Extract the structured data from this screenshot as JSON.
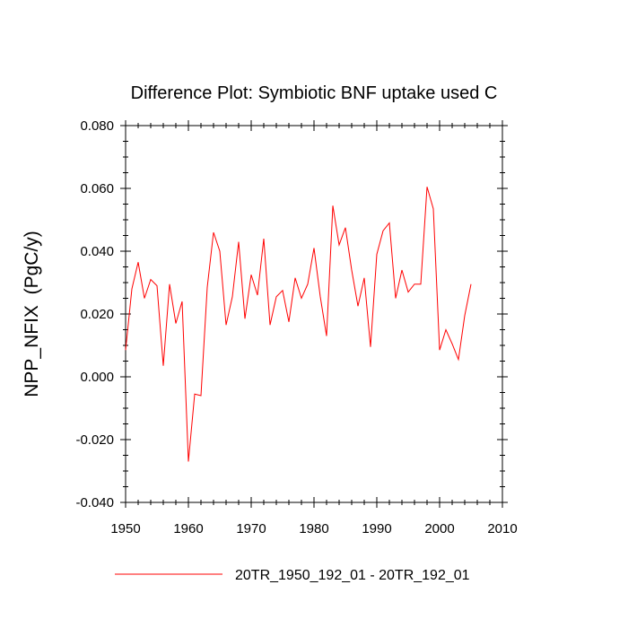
{
  "chart_data": {
    "type": "line",
    "title": "Difference Plot: Symbiotic BNF uptake used C",
    "xlabel": "",
    "ylabel": "NPP_NFIX  (PgC/y)",
    "xlim": [
      1950,
      2010
    ],
    "ylim": [
      -0.04,
      0.08
    ],
    "xticks": [
      1950,
      1960,
      1970,
      1980,
      1990,
      2000,
      2010
    ],
    "xtick_labels": [
      "1950",
      "1960",
      "1970",
      "1980",
      "1990",
      "2000",
      "2010"
    ],
    "yticks": [
      -0.04,
      -0.02,
      0.0,
      0.02,
      0.04,
      0.06,
      0.08
    ],
    "ytick_labels": [
      "-0.040",
      "-0.020",
      "0.000",
      "0.020",
      "0.040",
      "0.060",
      "0.080"
    ],
    "grid": false,
    "legend_position": "bottom-center",
    "series": [
      {
        "name": "20TR_1950_192_01 - 20TR_192_01",
        "color": "#ff0000",
        "x": [
          1950,
          1951,
          1952,
          1953,
          1954,
          1955,
          1956,
          1957,
          1958,
          1959,
          1960,
          1961,
          1962,
          1963,
          1964,
          1965,
          1966,
          1967,
          1968,
          1969,
          1970,
          1971,
          1972,
          1973,
          1974,
          1975,
          1976,
          1977,
          1978,
          1979,
          1980,
          1981,
          1982,
          1983,
          1984,
          1985,
          1986,
          1987,
          1988,
          1989,
          1990,
          1991,
          1992,
          1993,
          1994,
          1995,
          1996,
          1997,
          1998,
          1999,
          2000,
          2001,
          2002,
          2003,
          2004,
          2005
        ],
        "values": [
          0.0085,
          0.028,
          0.0365,
          0.025,
          0.031,
          0.029,
          0.0035,
          0.0295,
          0.017,
          0.024,
          -0.027,
          -0.0055,
          -0.006,
          0.0285,
          0.046,
          0.04,
          0.0165,
          0.0255,
          0.043,
          0.0185,
          0.0325,
          0.026,
          0.044,
          0.0165,
          0.0255,
          0.0275,
          0.0175,
          0.0315,
          0.025,
          0.0295,
          0.041,
          0.0255,
          0.013,
          0.0545,
          0.042,
          0.0475,
          0.034,
          0.0225,
          0.0315,
          0.0095,
          0.039,
          0.0465,
          0.049,
          0.025,
          0.034,
          0.027,
          0.0295,
          0.0295,
          0.0605,
          0.0535,
          0.0085,
          0.015,
          0.0105,
          0.0055,
          0.0195,
          0.0295
        ]
      }
    ]
  }
}
